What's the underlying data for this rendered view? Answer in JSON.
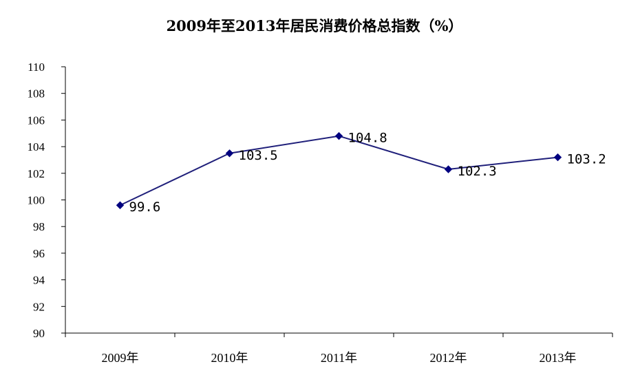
{
  "chart_data": {
    "type": "line",
    "title": "2009年至2013年居民消费价格总指数（%）",
    "categories": [
      "2009年",
      "2010年",
      "2011年",
      "2012年",
      "2013年"
    ],
    "series": [
      {
        "values": [
          99.6,
          103.5,
          104.8,
          102.3,
          103.2
        ]
      }
    ],
    "data_labels": [
      "99.6",
      "103.5",
      "104.8",
      "102.3",
      "103.2"
    ],
    "ylim": [
      90,
      110
    ],
    "yticks": [
      "90",
      "92",
      "94",
      "96",
      "98",
      "100",
      "102",
      "104",
      "106",
      "108",
      "110"
    ],
    "grid": false,
    "legend": "none",
    "colors": {
      "line": "#1f1f7a",
      "marker": "#000080",
      "axis": "#000000"
    },
    "marker": "diamond-icon"
  }
}
